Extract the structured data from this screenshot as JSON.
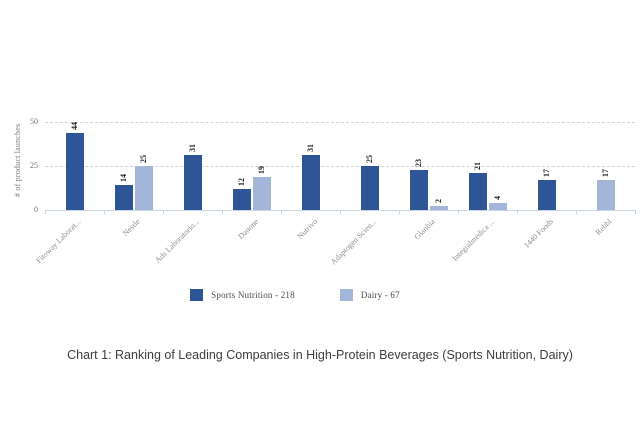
{
  "chart_data": {
    "type": "bar",
    "title": "",
    "caption": "Chart 1: Ranking of Leading Companies in High-Protein Beverages (Sports Nutrition, Dairy)",
    "ylabel": "# of product launches",
    "xlabel": "",
    "ylim": [
      0,
      55
    ],
    "yticks": [
      0,
      25,
      50
    ],
    "grid": "horizontal-dashed",
    "legend_position": "bottom-center",
    "categories": [
      "Fitoway Laborat...",
      "Nestle",
      "Ads Laboratorio...",
      "Danone",
      "Nutrivo",
      "Adaptogen Scien...",
      "Glanbia",
      "Integralmedica ...",
      "1440 Foods",
      "Rebbl"
    ],
    "series": [
      {
        "name": "Sports Nutrition - 218",
        "color": "#2e5696",
        "values": [
          44,
          14,
          31,
          12,
          31,
          25,
          23,
          21,
          17,
          null
        ]
      },
      {
        "name": "Dairy - 67",
        "color": "#a3b5d9",
        "values": [
          null,
          25,
          null,
          19,
          null,
          null,
          2,
          4,
          null,
          17
        ]
      }
    ],
    "colors": {
      "grid": "#d4d4d4",
      "axis": "#c9d6e4",
      "tick_text": "#6f6f6f",
      "category_text": "#8c8c8c"
    }
  }
}
